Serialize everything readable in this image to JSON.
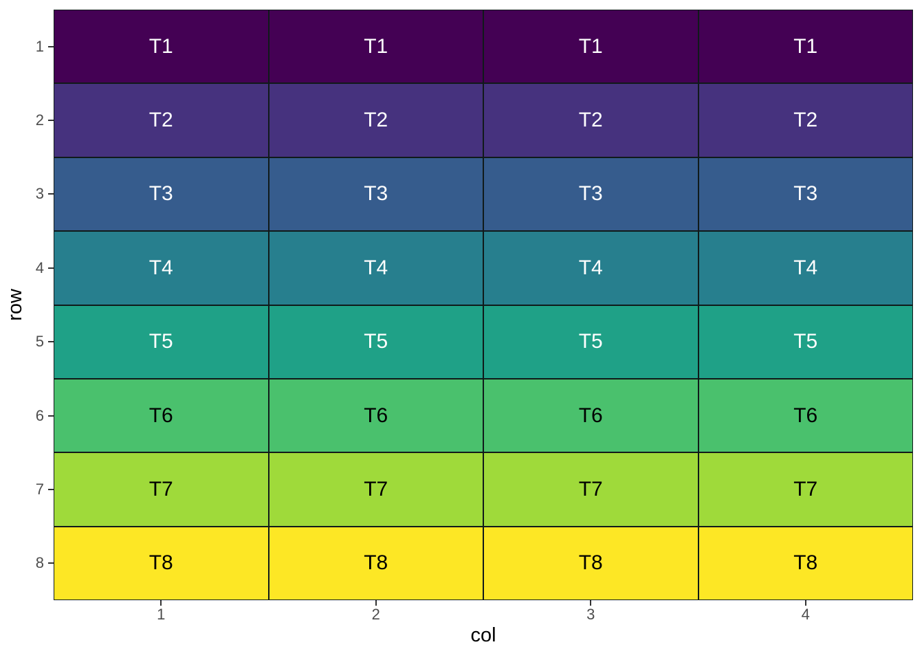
{
  "chart_data": {
    "type": "heatmap",
    "title": "",
    "xlabel": "col",
    "ylabel": "row",
    "x_tick_labels": [
      "1",
      "2",
      "3",
      "4"
    ],
    "y_tick_labels": [
      "1",
      "2",
      "3",
      "4",
      "5",
      "6",
      "7",
      "8"
    ],
    "n_cols": 4,
    "n_rows": 8,
    "grid": false,
    "legend_position": "none",
    "tile_border_color": "#101a1a",
    "axis": {
      "tick_color": "#333333",
      "tick_label_color": "#4d4d4d",
      "title_color": "#000000"
    },
    "rows": [
      {
        "y": 1,
        "fill": "#440154",
        "label_color": "#ffffff",
        "cells": [
          "T1",
          "T1",
          "T1",
          "T1"
        ]
      },
      {
        "y": 2,
        "fill": "#46327E",
        "label_color": "#ffffff",
        "cells": [
          "T2",
          "T2",
          "T2",
          "T2"
        ]
      },
      {
        "y": 3,
        "fill": "#365C8D",
        "label_color": "#ffffff",
        "cells": [
          "T3",
          "T3",
          "T3",
          "T3"
        ]
      },
      {
        "y": 4,
        "fill": "#277F8E",
        "label_color": "#ffffff",
        "cells": [
          "T4",
          "T4",
          "T4",
          "T4"
        ]
      },
      {
        "y": 5,
        "fill": "#1FA187",
        "label_color": "#ffffff",
        "cells": [
          "T5",
          "T5",
          "T5",
          "T5"
        ]
      },
      {
        "y": 6,
        "fill": "#4AC16D",
        "label_color": "#000000",
        "cells": [
          "T6",
          "T6",
          "T6",
          "T6"
        ]
      },
      {
        "y": 7,
        "fill": "#9FDA3A",
        "label_color": "#000000",
        "cells": [
          "T7",
          "T7",
          "T7",
          "T7"
        ]
      },
      {
        "y": 8,
        "fill": "#FDE725",
        "label_color": "#000000",
        "cells": [
          "T8",
          "T8",
          "T8",
          "T8"
        ]
      }
    ]
  }
}
